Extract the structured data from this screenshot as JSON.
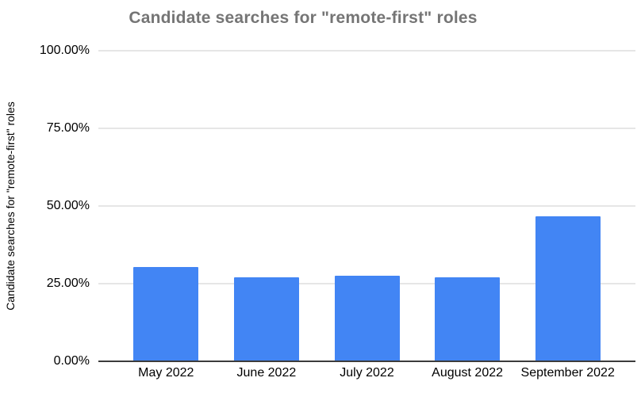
{
  "chart_data": {
    "type": "bar",
    "title": "Candidate searches for \"remote-first\" roles",
    "ylabel": "Candidate searches for \"remote-first\" roles",
    "xlabel": "",
    "categories": [
      "May 2022",
      "June 2022",
      "July 2022",
      "August 2022",
      "September 2022"
    ],
    "values": [
      30.4,
      27.0,
      27.6,
      27.0,
      46.8
    ],
    "unit": "%",
    "ylim": [
      0,
      100
    ],
    "y_ticks": [
      {
        "value": 100,
        "label": "100.00%"
      },
      {
        "value": 75,
        "label": "75.00%"
      },
      {
        "value": 50,
        "label": "50.00%"
      },
      {
        "value": 25,
        "label": "25.00%"
      },
      {
        "value": 0,
        "label": "0.00%"
      }
    ],
    "grid": true,
    "legend": "none",
    "colors": {
      "bar": "#4285f4",
      "title": "#757575",
      "axis_text": "#000000",
      "gridline": "#e6e6e6",
      "axis_line": "#3c3c3c",
      "background": "#ffffff"
    }
  }
}
